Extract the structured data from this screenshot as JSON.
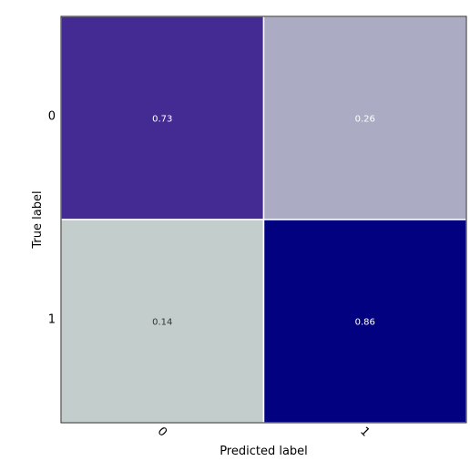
{
  "chart_data": {
    "type": "heatmap",
    "xlabel": "Predicted label",
    "ylabel": "True label",
    "x_categories": [
      "0",
      "1"
    ],
    "y_categories": [
      "0",
      "1"
    ],
    "values": [
      [
        0.73,
        0.26
      ],
      [
        0.14,
        0.86
      ]
    ],
    "labels": [
      [
        "0.73",
        "0.26"
      ],
      [
        "0.14",
        "0.86"
      ]
    ],
    "cell_colors": [
      [
        "#442a93",
        "#abacc4"
      ],
      [
        "#c3cdcc",
        "#020281"
      ]
    ],
    "label_colors": [
      [
        "#ffffff",
        "#ffffff"
      ],
      [
        "#333333",
        "#ffffff"
      ]
    ],
    "grid": false
  }
}
